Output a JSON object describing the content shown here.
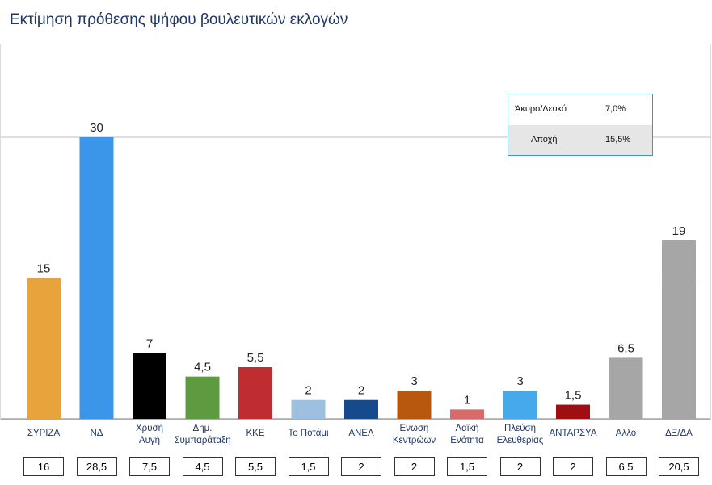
{
  "title": "Εκτίμηση πρόθεσης ψήφου βουλευτικών εκλογών",
  "chart_data": {
    "type": "bar",
    "title": "Εκτίμηση πρόθεσης ψήφου βουλευτικών εκλογών",
    "categories": [
      [
        "ΣΥΡΙΖΑ"
      ],
      [
        "ΝΔ"
      ],
      [
        "Χρυσή",
        "Αυγή"
      ],
      [
        "Δημ.",
        "Συμπαράταξη"
      ],
      [
        "ΚΚΕ"
      ],
      [
        "Το Ποτάμι"
      ],
      [
        "ΑΝΕΛ"
      ],
      [
        "Ενωση",
        "Κεντρώων"
      ],
      [
        "Λαϊκή",
        "Ενότητα"
      ],
      [
        "Πλεύση",
        "Ελευθερίας"
      ],
      [
        "ΑΝΤΑΡΣΥΑ"
      ],
      [
        "Αλλο"
      ],
      [
        "ΔΞ/ΔΑ"
      ]
    ],
    "values": [
      15,
      30,
      7,
      4.5,
      5.5,
      2,
      2,
      3,
      1,
      3,
      1.5,
      6.5,
      19
    ],
    "value_labels": [
      "15",
      "30",
      "7",
      "4,5",
      "5,5",
      "2",
      "2",
      "3",
      "1",
      "3",
      "1,5",
      "6,5",
      "19"
    ],
    "colors": [
      "#e8a33d",
      "#3b96ea",
      "#000000",
      "#5e9a3f",
      "#bf2d30",
      "#9ec0e0",
      "#164a8c",
      "#b8580e",
      "#d76a6a",
      "#45a9ec",
      "#9d0f12",
      "#a6a6a6",
      "#a6a6a6"
    ],
    "ylim": [
      0,
      32
    ],
    "gridlines": [
      15,
      30
    ],
    "previous_values": [
      "16",
      "28,5",
      "7,5",
      "4,5",
      "5,5",
      "1,5",
      "2",
      "2",
      "1,5",
      "2",
      "2",
      "6,5",
      "20,5"
    ],
    "legend_box": {
      "rows": [
        {
          "label": "Άκυρο/Λευκό",
          "value": "7,0%"
        },
        {
          "label": "Αποχή",
          "value": "15,5%"
        }
      ]
    }
  }
}
